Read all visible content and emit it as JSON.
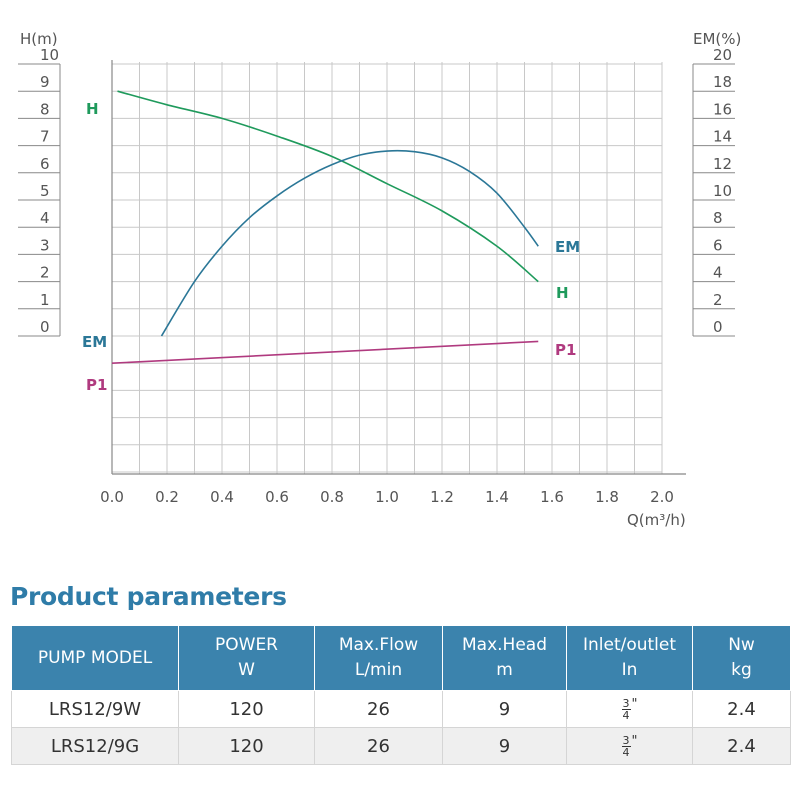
{
  "chart_data": {
    "type": "line",
    "xlabel": "Q(m³/h)",
    "ylabel_left": "H(m)",
    "ylabel_right": "EM(%)",
    "xlim": [
      0,
      2.0
    ],
    "ylim_left": [
      0,
      10
    ],
    "ylim_right": [
      0,
      20
    ],
    "x_ticks": [
      "0.0",
      "0.2",
      "0.4",
      "0.6",
      "0.8",
      "1.0",
      "1.2",
      "1.4",
      "1.6",
      "1.8",
      "2.0"
    ],
    "y_left_ticks": [
      "10",
      "9",
      "8",
      "7",
      "6",
      "5",
      "4",
      "3",
      "2",
      "1",
      "0"
    ],
    "y_right_ticks": [
      "20",
      "18",
      "16",
      "14",
      "12",
      "10",
      "8",
      "6",
      "4",
      "2",
      "0"
    ],
    "grid": true,
    "series": [
      {
        "name": "H",
        "axis": "left",
        "color": "#1f9a5c",
        "x": [
          0.02,
          0.2,
          0.4,
          0.6,
          0.8,
          1.0,
          1.2,
          1.4,
          1.55
        ],
        "y": [
          9.0,
          8.5,
          8.0,
          7.35,
          6.6,
          5.6,
          4.6,
          3.3,
          2.0
        ]
      },
      {
        "name": "EM",
        "axis": "right",
        "color": "#2b7797",
        "x": [
          0.18,
          0.3,
          0.4,
          0.5,
          0.6,
          0.7,
          0.8,
          0.9,
          1.0,
          1.1,
          1.2,
          1.3,
          1.4,
          1.5,
          1.55
        ],
        "y": [
          0.0,
          4.0,
          6.6,
          8.7,
          10.3,
          11.6,
          12.6,
          13.3,
          13.6,
          13.55,
          13.1,
          12.1,
          10.5,
          8.0,
          6.6
        ]
      },
      {
        "name": "P1",
        "axis": "none",
        "color": "#b03a7f",
        "x": [
          0.0,
          1.55
        ],
        "y": [
          -1.0,
          -0.2
        ]
      }
    ],
    "curve_labels": {
      "H_start": "H",
      "H_end": "H",
      "EM_start": "EM",
      "EM_end": "EM",
      "P1_start": "P1",
      "P1_end": "P1"
    }
  },
  "section_title": "Product parameters",
  "table": {
    "headers": [
      {
        "line1": "PUMP MODEL",
        "line2": ""
      },
      {
        "line1": "POWER",
        "line2": "W"
      },
      {
        "line1": "Max.Flow",
        "line2": "L/min"
      },
      {
        "line1": "Max.Head",
        "line2": "m"
      },
      {
        "line1": "Inlet/outlet",
        "line2": "In"
      },
      {
        "line1": "Nw",
        "line2": "kg"
      }
    ],
    "rows": [
      {
        "model": "LRS12/9W",
        "power": "120",
        "flow": "26",
        "head": "9",
        "inlet_num": "3",
        "inlet_den": "4",
        "inlet_unit": "\"",
        "nw": "2.4"
      },
      {
        "model": "LRS12/9G",
        "power": "120",
        "flow": "26",
        "head": "9",
        "inlet_num": "3",
        "inlet_den": "4",
        "inlet_unit": "\"",
        "nw": "2.4"
      }
    ]
  },
  "colors": {
    "header_bg": "#3b83ad",
    "title_color": "#2f7ca8",
    "grid": "#c8c8c8",
    "axis": "#888888"
  }
}
